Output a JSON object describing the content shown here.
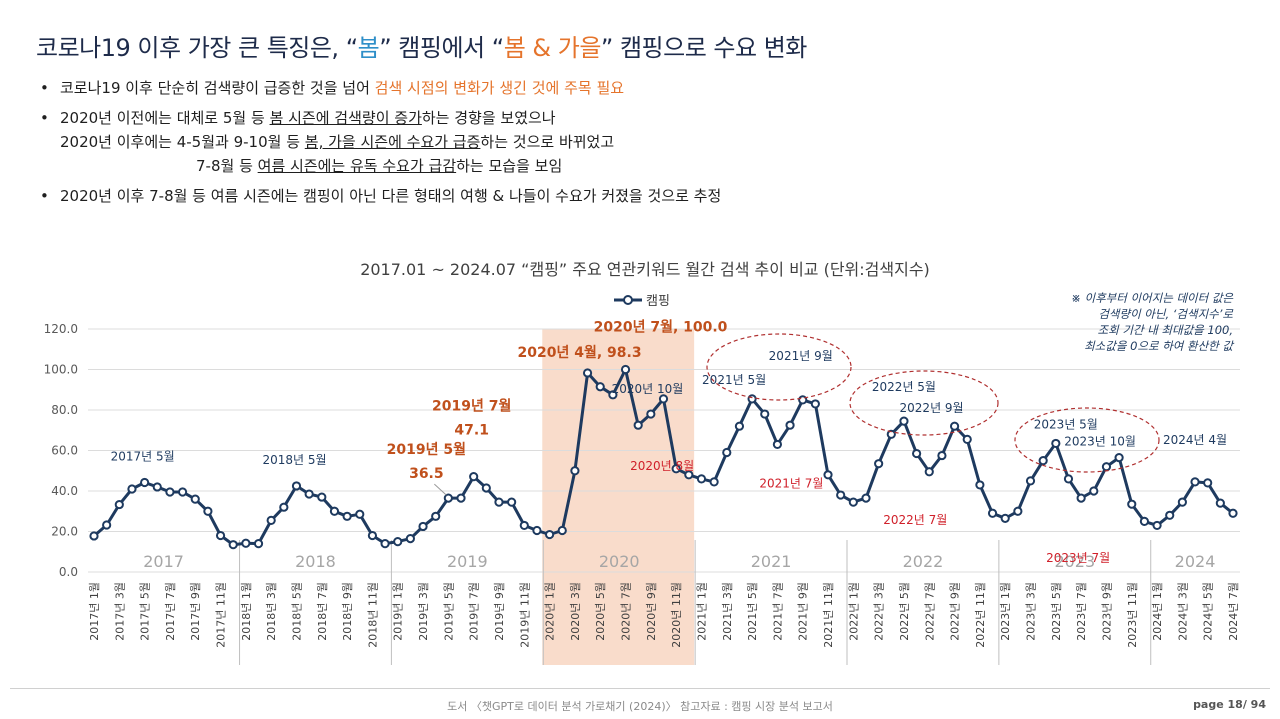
{
  "header": {
    "title_part1": "코로나19 이후 가장 큰 특징은, “",
    "title_spring": "봄",
    "title_part2": "” 캠핑에서 “",
    "title_spring_fall": "봄 & 가을",
    "title_part3": "” 캠핑으로 수요 변화"
  },
  "bullets": {
    "b1_text": "코로나19 이후 단순히 검색량이 급증한 것을 넘어 ",
    "b1_highlight": "검색 시점의 변화가 생긴 것에 주목 필요",
    "b2_line1_a": "2020년 이전에는 대체로 5월 등 ",
    "b2_line1_u": "봄 시즌에 검색량이 증가",
    "b2_line1_b": "하는 경향을 보였으나",
    "b2_line2_a": "2020년 이후에는 4-5월과 9-10월 등 ",
    "b2_line2_u": "봄, 가을 시즌에 수요가 급증",
    "b2_line2_b": "하는 것으로 바뀌었고",
    "b2_line3_a": "7-8월 등 ",
    "b2_line3_u": "여름 시즌에는 유독 수요가 급감",
    "b2_line3_b": "하는 모습을 보임",
    "b3_text": "2020년 이후 7-8월 등 여름 시즌에는 캠핑이 아닌 다른 형태의 여행 & 나들이 수요가 커졌을 것으로 추정"
  },
  "chart_data": {
    "type": "line",
    "title": "2017.01 ~ 2024.07 “캠핑” 주요 연관키워드 월간 검색 추이 비교 (단위:검색지수)",
    "series": [
      {
        "name": "캠핑",
        "values": [
          17.8,
          23.2,
          33.3,
          41.0,
          44.2,
          42.0,
          39.5,
          39.5,
          36.0,
          30.0,
          18.0,
          13.5,
          14.2,
          14.0,
          25.5,
          32.0,
          42.5,
          38.5,
          37.0,
          30.0,
          27.5,
          28.5,
          18.0,
          14.0,
          15.0,
          16.5,
          22.5,
          27.5,
          36.5,
          36.5,
          47.1,
          41.5,
          34.5,
          34.5,
          23.0,
          20.5,
          18.5,
          20.5,
          50.0,
          98.3,
          91.5,
          87.5,
          100.0,
          72.5,
          78.0,
          85.5,
          51.0,
          48.0,
          46.0,
          44.5,
          59.0,
          72.0,
          85.5,
          78.0,
          63.0,
          72.5,
          85.0,
          83.0,
          48.0,
          38.0,
          34.5,
          36.5,
          53.5,
          68.0,
          74.5,
          58.5,
          49.5,
          57.5,
          72.0,
          65.5,
          43.0,
          29.0,
          26.5,
          30.0,
          45.0,
          55.0,
          63.5,
          46.0,
          36.5,
          40.0,
          52.0,
          56.5,
          33.5,
          25.0,
          23.0,
          28.0,
          34.5,
          44.5,
          44.0,
          34.0,
          29.0
        ]
      }
    ],
    "x_labels": [
      "2017년 1월",
      "2017년 3월",
      "2017년 5월",
      "2017년 7월",
      "2017년 9월",
      "2017년 11월",
      "2018년 1월",
      "2018년 3월",
      "2018년 5월",
      "2018년 7월",
      "2018년 9월",
      "2018년 11월",
      "2019년 1월",
      "2019년 3월",
      "2019년 5월",
      "2019년 7월",
      "2019년 9월",
      "2019년 11월",
      "2020년 1월",
      "2020년 3월",
      "2020년 5월",
      "2020년 7월",
      "2020년 9월",
      "2020년 11월",
      "2021년 1월",
      "2021년 3월",
      "2021년 5월",
      "2021년 7월",
      "2021년 9월",
      "2021년 11월",
      "2022년 1월",
      "2022년 3월",
      "2022년 5월",
      "2022년 7월",
      "2022년 9월",
      "2022년 11월",
      "2023년 1월",
      "2023년 3월",
      "2023년 5월",
      "2023년 7월",
      "2023년 9월",
      "2023년 11월",
      "2024년 1월",
      "2024년 3월",
      "2024년 5월",
      "2024년 7월"
    ],
    "years": [
      "2017",
      "2018",
      "2019",
      "2020",
      "2021",
      "2022",
      "2023",
      "2024"
    ],
    "y_ticks": [
      "0.0",
      "20.0",
      "40.0",
      "60.0",
      "80.0",
      "100.0",
      "120.0"
    ],
    "ylim": [
      0,
      120
    ],
    "legend": "캠핑",
    "legend_position": "top",
    "highlight_year": "2020",
    "annotations": [
      {
        "text": "2017년 5월",
        "color": "#1e3a5f",
        "index": 4
      },
      {
        "text": "2018년 5월",
        "color": "#1e3a5f",
        "index": 16
      },
      {
        "text": "2019년 5월",
        "color": "#c0501c",
        "index": 28
      },
      {
        "text": "36.5",
        "color": "#c0501c",
        "index": 28
      },
      {
        "text": "2019년 7월",
        "color": "#c0501c",
        "index": 30
      },
      {
        "text": "47.1",
        "color": "#c0501c",
        "index": 30
      },
      {
        "text": "2020년 4월, 98.3",
        "color": "#c0501c",
        "index": 39
      },
      {
        "text": "2020년 7월, 100.0",
        "color": "#c0501c",
        "index": 42
      },
      {
        "text": "2020년 10월",
        "color": "#1e3a5f",
        "index": 45
      },
      {
        "text": "2020년 8월",
        "color": "#d0202a",
        "index": 43
      },
      {
        "text": "2021년 5월",
        "color": "#1e3a5f",
        "index": 52
      },
      {
        "text": "2021년 9월",
        "color": "#1e3a5f",
        "index": 56
      },
      {
        "text": "2021년 7월",
        "color": "#d0202a",
        "index": 54
      },
      {
        "text": "2022년 5월",
        "color": "#1e3a5f",
        "index": 64
      },
      {
        "text": "2022년 9월",
        "color": "#1e3a5f",
        "index": 68
      },
      {
        "text": "2022년 7월",
        "color": "#d0202a",
        "index": 66
      },
      {
        "text": "2023년 5월",
        "color": "#1e3a5f",
        "index": 76
      },
      {
        "text": "2023년 10월",
        "color": "#1e3a5f",
        "index": 81
      },
      {
        "text": "2023년 7월",
        "color": "#d0202a",
        "index": 78
      },
      {
        "text": "2024년 4월",
        "color": "#1e3a5f",
        "index": 87
      }
    ],
    "note_lines": [
      "※ 이후부터 이어지는 데이터 값은",
      "검색량이 아닌, ‘검색지수’로",
      "조회 기간 내 최대값을 100,",
      "최소값을 0으로 하여 환산한 값"
    ]
  },
  "footer": {
    "source": "도서 〈챗GPT로 데이터 분석 가로채기 (2024)〉 참고자료 : 캠핑 시장 분석 보고서",
    "page": "page 18/ 94"
  },
  "colors": {
    "line": "#1e3a5f",
    "highlight_fill": "#f9dccb",
    "title_blue": "#2f8fc8",
    "title_orange": "#e5742c",
    "annot_orange": "#c0501c",
    "annot_red": "#d0202a",
    "ellipse": "#b03030"
  }
}
